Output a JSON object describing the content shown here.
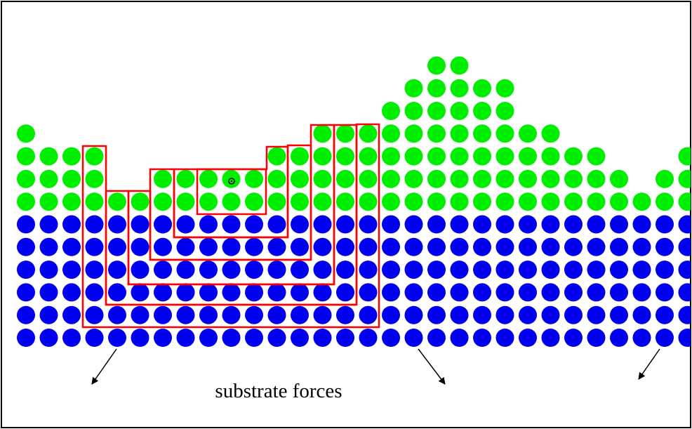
{
  "diagram": {
    "label": "substrate forces"
  }
}
